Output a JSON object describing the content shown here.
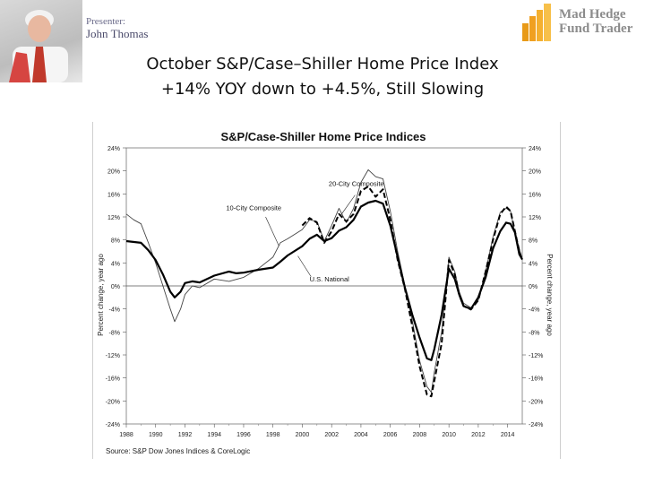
{
  "header": {
    "presenter_label": "Presenter:",
    "presenter_name": "John Thomas",
    "logo_line1": "Mad Hedge",
    "logo_line2": "Fund Trader"
  },
  "slide": {
    "title_line1": "October S&P/Case–Shiller Home Price Index",
    "title_line2": "+14% YOY down to +4.5%, Still Slowing"
  },
  "colors": {
    "logo_orange": "#f0a020",
    "logo_text": "#8c8c8c",
    "chart_line": "#000000"
  },
  "chart_data": {
    "type": "line",
    "title": "S&P/Case-Shiller Home Price Indices",
    "ylabel_left": "Percent change, year ago",
    "ylabel_right": "Percent change, year ago",
    "source": "Source: S&P Dow Jones Indices & CoreLogic",
    "xlim": [
      1988,
      2015
    ],
    "ylim": [
      -24,
      24
    ],
    "xticks": [
      1988,
      1990,
      1992,
      1994,
      1996,
      1998,
      2000,
      2002,
      2004,
      2006,
      2008,
      2010,
      2012,
      2014
    ],
    "yticks": [
      24,
      20,
      16,
      12,
      8,
      4,
      0,
      -4,
      -8,
      -12,
      -16,
      -20,
      -24
    ],
    "ytick_labels": [
      "24%",
      "20%",
      "16%",
      "12%",
      "8%",
      "4%",
      "0%",
      "-4%",
      "-8%",
      "-12%",
      "-16%",
      "-20%",
      "-24%"
    ],
    "annotations": [
      {
        "text": "20-City Composite",
        "x": 2001.8,
        "y": 17.4
      },
      {
        "text": "10-City Composite",
        "x": 1994.8,
        "y": 13.2
      },
      {
        "text": "U.S. National",
        "x": 2000.5,
        "y": 0.8
      }
    ],
    "series": [
      {
        "name": "U.S. National",
        "style": "solid-thick",
        "points": [
          [
            1988,
            7.8
          ],
          [
            1989,
            7.5
          ],
          [
            1989.5,
            6.2
          ],
          [
            1990,
            4.5
          ],
          [
            1990.5,
            2
          ],
          [
            1991,
            -1
          ],
          [
            1991.3,
            -2
          ],
          [
            1991.7,
            -1
          ],
          [
            1992,
            0.5
          ],
          [
            1992.5,
            0.8
          ],
          [
            1993,
            0.6
          ],
          [
            1994,
            1.8
          ],
          [
            1995,
            2.5
          ],
          [
            1995.5,
            2.2
          ],
          [
            1996,
            2.3
          ],
          [
            1997,
            2.8
          ],
          [
            1998,
            3.2
          ],
          [
            1998.5,
            4.2
          ],
          [
            1999,
            5.3
          ],
          [
            2000,
            6.9
          ],
          [
            2000.5,
            8.2
          ],
          [
            2001,
            8.9
          ],
          [
            2001.5,
            7.8
          ],
          [
            2002,
            8.3
          ],
          [
            2002.5,
            9.6
          ],
          [
            2003,
            10.2
          ],
          [
            2003.5,
            11.5
          ],
          [
            2004,
            13.8
          ],
          [
            2004.5,
            14.5
          ],
          [
            2005,
            14.8
          ],
          [
            2005.5,
            14.3
          ],
          [
            2006,
            10.5
          ],
          [
            2006.5,
            5
          ],
          [
            2007,
            -0.3
          ],
          [
            2007.5,
            -5
          ],
          [
            2008,
            -9
          ],
          [
            2008.5,
            -12.6
          ],
          [
            2008.8,
            -12.9
          ],
          [
            2009,
            -11
          ],
          [
            2009.5,
            -5
          ],
          [
            2010,
            3
          ],
          [
            2010.4,
            1.2
          ],
          [
            2010.7,
            -1.5
          ],
          [
            2011,
            -3.5
          ],
          [
            2011.5,
            -4
          ],
          [
            2012,
            -2
          ],
          [
            2012.5,
            1.5
          ],
          [
            2013,
            6.5
          ],
          [
            2013.5,
            9.5
          ],
          [
            2013.9,
            11
          ],
          [
            2014.2,
            10.8
          ],
          [
            2014.5,
            9.3
          ],
          [
            2014.8,
            5.5
          ],
          [
            2015,
            4.6
          ]
        ]
      },
      {
        "name": "20-City Composite",
        "style": "dashed",
        "points": [
          [
            2000,
            10.5
          ],
          [
            2000.5,
            11.8
          ],
          [
            2001,
            11
          ],
          [
            2001.5,
            7.5
          ],
          [
            2002,
            9.5
          ],
          [
            2002.5,
            12.5
          ],
          [
            2003,
            11.2
          ],
          [
            2003.5,
            12.5
          ],
          [
            2004,
            16.5
          ],
          [
            2004.5,
            17.3
          ],
          [
            2005,
            15.5
          ],
          [
            2005.5,
            16.8
          ],
          [
            2006,
            11.5
          ],
          [
            2006.5,
            4.5
          ],
          [
            2007,
            -0.5
          ],
          [
            2007.5,
            -7
          ],
          [
            2008,
            -14
          ],
          [
            2008.5,
            -18.9
          ],
          [
            2008.8,
            -19.2
          ],
          [
            2009,
            -16.5
          ],
          [
            2009.5,
            -10
          ],
          [
            2010,
            4.5
          ],
          [
            2010.4,
            2
          ],
          [
            2010.7,
            -1.5
          ],
          [
            2011,
            -3.5
          ],
          [
            2011.5,
            -4.1
          ],
          [
            2012,
            -2.5
          ],
          [
            2012.5,
            2.5
          ],
          [
            2013,
            8
          ],
          [
            2013.5,
            12.5
          ],
          [
            2013.9,
            13.8
          ],
          [
            2014.2,
            13
          ],
          [
            2014.5,
            9.5
          ],
          [
            2014.8,
            6
          ],
          [
            2015,
            4.5
          ]
        ]
      },
      {
        "name": "10-City Composite",
        "style": "solid-thin",
        "points": [
          [
            1988,
            12.5
          ],
          [
            1988.5,
            11.5
          ],
          [
            1989,
            10.8
          ],
          [
            1989.5,
            7.5
          ],
          [
            1990,
            4
          ],
          [
            1990.5,
            0
          ],
          [
            1991,
            -4
          ],
          [
            1991.3,
            -6.2
          ],
          [
            1991.7,
            -4
          ],
          [
            1992,
            -1.5
          ],
          [
            1992.5,
            0
          ],
          [
            1993,
            -0.3
          ],
          [
            1994,
            1.2
          ],
          [
            1995,
            0.8
          ],
          [
            1996,
            1.5
          ],
          [
            1997,
            3
          ],
          [
            1998,
            5
          ],
          [
            1998.5,
            7.5
          ],
          [
            1999,
            8.2
          ],
          [
            2000,
            9.8
          ],
          [
            2000.5,
            11.5
          ],
          [
            2001,
            11.2
          ],
          [
            2001.5,
            7.8
          ],
          [
            2002,
            10.5
          ],
          [
            2002.5,
            13.5
          ],
          [
            2003,
            11
          ],
          [
            2003.5,
            13.5
          ],
          [
            2004,
            18
          ],
          [
            2004.5,
            20.2
          ],
          [
            2005,
            19
          ],
          [
            2005.5,
            18.6
          ],
          [
            2006,
            13
          ],
          [
            2006.5,
            6
          ],
          [
            2007,
            0
          ],
          [
            2007.5,
            -6
          ],
          [
            2008,
            -13
          ],
          [
            2008.5,
            -17.5
          ],
          [
            2008.8,
            -18.5
          ],
          [
            2009,
            -15
          ],
          [
            2009.5,
            -8
          ],
          [
            2010,
            5
          ],
          [
            2010.4,
            2.5
          ],
          [
            2010.7,
            -1
          ],
          [
            2011,
            -3
          ],
          [
            2011.5,
            -3.8
          ],
          [
            2012,
            -2.5
          ],
          [
            2012.5,
            2.5
          ],
          [
            2013,
            8.5
          ],
          [
            2013.5,
            12.8
          ],
          [
            2013.9,
            13.5
          ],
          [
            2014.2,
            13
          ],
          [
            2014.5,
            9.2
          ],
          [
            2014.8,
            6.5
          ],
          [
            2015,
            4.5
          ]
        ]
      }
    ]
  }
}
